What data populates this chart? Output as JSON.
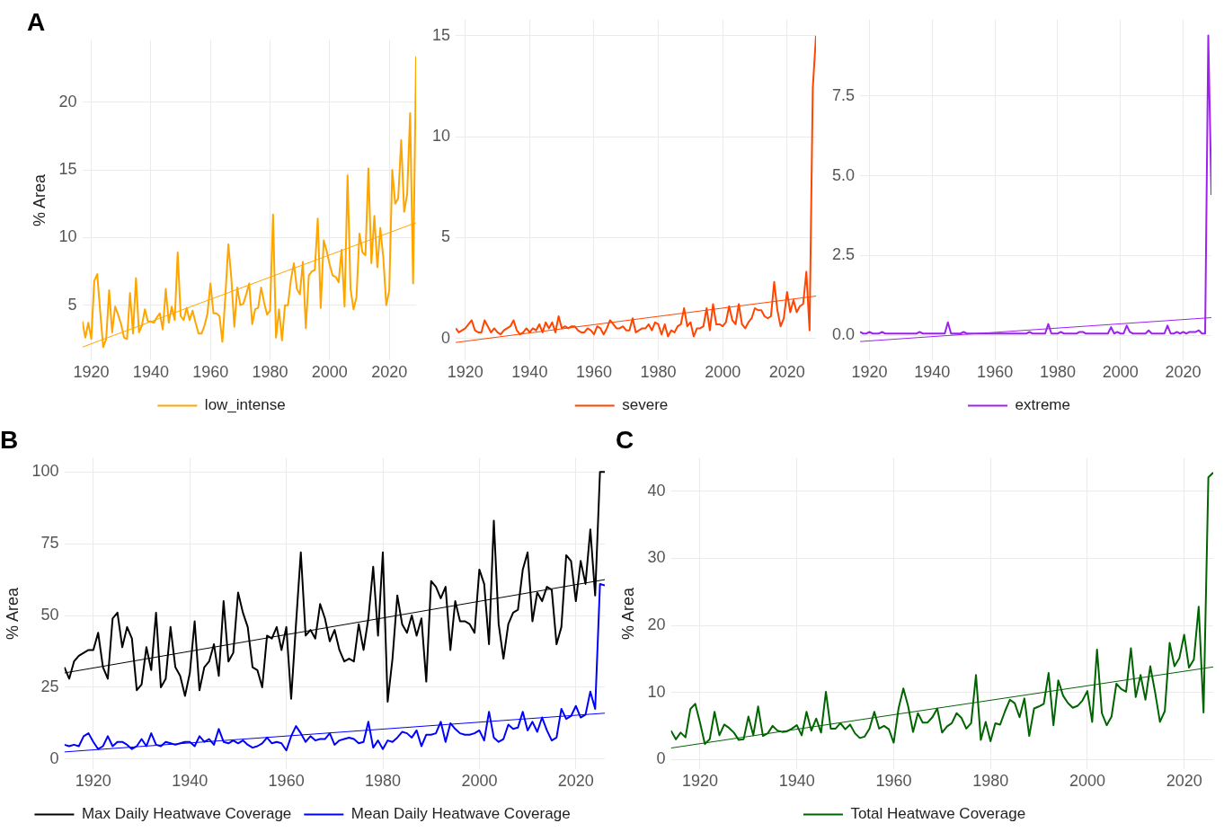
{
  "chart_data": [
    {
      "type": "line",
      "title": "A",
      "ylabel": "% Area",
      "xlim": [
        1917,
        2029
      ],
      "xticks": [
        1920,
        1940,
        1960,
        1980,
        2000,
        2020
      ],
      "ylim": [
        0.9,
        24.6
      ],
      "yticks": [
        5,
        10,
        15,
        20
      ],
      "grid": true,
      "legend": "bottom",
      "x": [
        1917,
        1918,
        1919,
        1920,
        1921,
        1922,
        1923,
        1924,
        1925,
        1926,
        1927,
        1928,
        1929,
        1930,
        1931,
        1932,
        1933,
        1934,
        1935,
        1936,
        1937,
        1938,
        1939,
        1940,
        1941,
        1942,
        1943,
        1944,
        1945,
        1946,
        1947,
        1948,
        1949,
        1950,
        1951,
        1952,
        1953,
        1954,
        1955,
        1956,
        1957,
        1958,
        1959,
        1960,
        1961,
        1962,
        1963,
        1964,
        1965,
        1966,
        1967,
        1968,
        1969,
        1970,
        1971,
        1972,
        1973,
        1974,
        1975,
        1976,
        1977,
        1978,
        1979,
        1980,
        1981,
        1982,
        1983,
        1984,
        1985,
        1986,
        1987,
        1988,
        1989,
        1990,
        1991,
        1992,
        1993,
        1994,
        1995,
        1996,
        1997,
        1998,
        1999,
        2000,
        2001,
        2002,
        2003,
        2004,
        2005,
        2006,
        2007,
        2008,
        2009,
        2010,
        2011,
        2012,
        2013,
        2014,
        2015,
        2016,
        2017,
        2018,
        2019,
        2020,
        2021,
        2022,
        2023,
        2024,
        2025,
        2026,
        2027,
        2028,
        2029
      ],
      "series": [
        {
          "name": "low_intense",
          "color": "#ffa500",
          "values": [
            3.8,
            2.6,
            3.7,
            2.5,
            6.8,
            7.3,
            4.5,
            1.9,
            2.5,
            6.1,
            3.0,
            4.9,
            4.3,
            3.6,
            2.6,
            2.5,
            5.9,
            2.9,
            7.0,
            3.0,
            3.5,
            4.7,
            3.8,
            3.8,
            3.7,
            4.1,
            4.4,
            3.2,
            6.2,
            3.7,
            4.9,
            3.9,
            8.9,
            4.2,
            3.9,
            4.8,
            3.9,
            4.6,
            3.7,
            2.9,
            2.9,
            3.5,
            4.4,
            6.6,
            4.4,
            4.4,
            4.2,
            2.3,
            5.7,
            9.5,
            7.0,
            3.4,
            6.3,
            5.0,
            5.1,
            5.8,
            6.6,
            3.6,
            4.7,
            4.8,
            6.3,
            5.2,
            4.3,
            4.6,
            11.7,
            2.6,
            4.7,
            2.4,
            5.0,
            5.0,
            6.9,
            8.1,
            6.2,
            5.8,
            8.2,
            3.3,
            7.2,
            7.5,
            7.6,
            11.4,
            4.8,
            9.8,
            9.0,
            8.0,
            7.2,
            7.1,
            6.7,
            9.1,
            4.9,
            14.6,
            6.2,
            4.7,
            5.6,
            10.3,
            8.9,
            8.7,
            15.1,
            8.1,
            11.6,
            7.8,
            10.7,
            8.5,
            5.0,
            6.1,
            15.0,
            12.5,
            12.9,
            17.2,
            11.9,
            13.2,
            19.2,
            6.6,
            23.4
          ]
        },
        {
          "color": "#ffa500",
          "x": [
            1917,
            2029
          ],
          "values": [
            1.9,
            11.1
          ]
        }
      ]
    },
    {
      "type": "line",
      "xlim": [
        1917,
        2029
      ],
      "xticks": [
        1920,
        1940,
        1960,
        1980,
        2000,
        2020
      ],
      "ylim": [
        -1.1,
        15.8
      ],
      "yticks": [
        0,
        5,
        10,
        15
      ],
      "grid": true,
      "legend": "bottom",
      "x": [
        1917,
        1918,
        1919,
        1920,
        1921,
        1922,
        1923,
        1924,
        1925,
        1926,
        1927,
        1928,
        1929,
        1930,
        1931,
        1932,
        1933,
        1934,
        1935,
        1936,
        1937,
        1938,
        1939,
        1940,
        1941,
        1942,
        1943,
        1944,
        1945,
        1946,
        1947,
        1948,
        1949,
        1950,
        1951,
        1952,
        1953,
        1954,
        1955,
        1956,
        1957,
        1958,
        1959,
        1960,
        1961,
        1962,
        1963,
        1964,
        1965,
        1966,
        1967,
        1968,
        1969,
        1970,
        1971,
        1972,
        1973,
        1974,
        1975,
        1976,
        1977,
        1978,
        1979,
        1980,
        1981,
        1982,
        1983,
        1984,
        1985,
        1986,
        1987,
        1988,
        1989,
        1990,
        1991,
        1992,
        1993,
        1994,
        1995,
        1996,
        1997,
        1998,
        1999,
        2000,
        2001,
        2002,
        2003,
        2004,
        2005,
        2006,
        2007,
        2008,
        2009,
        2010,
        2011,
        2012,
        2013,
        2014,
        2015,
        2016,
        2017,
        2018,
        2019,
        2020,
        2021,
        2022,
        2023,
        2024,
        2025,
        2026,
        2027,
        2028,
        2029
      ],
      "series": [
        {
          "name": "severe",
          "color": "#ff4500",
          "values": [
            0.5,
            0.3,
            0.4,
            0.5,
            0.7,
            0.9,
            0.4,
            0.3,
            0.3,
            0.9,
            0.6,
            0.3,
            0.5,
            0.3,
            0.2,
            0.4,
            0.5,
            0.6,
            0.9,
            0.4,
            0.2,
            0.3,
            0.5,
            0.3,
            0.5,
            0.4,
            0.7,
            0.3,
            0.8,
            0.5,
            0.8,
            0.3,
            1.1,
            0.5,
            0.6,
            0.5,
            0.6,
            0.6,
            0.4,
            0.3,
            0.3,
            0.5,
            0.4,
            0.2,
            0.6,
            0.5,
            0.2,
            0.5,
            0.9,
            0.7,
            0.5,
            0.5,
            0.6,
            0.4,
            0.4,
            1.0,
            0.3,
            0.4,
            0.5,
            0.5,
            0.7,
            0.4,
            0.8,
            0.7,
            0.2,
            0.7,
            0.1,
            0.4,
            0.3,
            0.6,
            0.7,
            1.5,
            0.6,
            0.8,
            0.1,
            0.5,
            0.5,
            0.6,
            1.5,
            0.4,
            1.7,
            0.7,
            0.7,
            0.6,
            0.8,
            1.6,
            0.9,
            0.7,
            1.7,
            0.7,
            0.5,
            0.8,
            1.0,
            1.5,
            1.4,
            1.4,
            1.1,
            1.0,
            1.1,
            2.8,
            1.4,
            0.6,
            1.0,
            2.3,
            1.3,
            1.9,
            1.3,
            1.6,
            1.7,
            3.3,
            0.4,
            12.4,
            15.0
          ]
        },
        {
          "color": "#ff4500",
          "x": [
            1917,
            2029
          ],
          "values": [
            -0.2,
            2.1
          ]
        }
      ]
    },
    {
      "type": "line",
      "xlim": [
        1917,
        2029
      ],
      "xticks": [
        1920,
        1940,
        1960,
        1980,
        2000,
        2020
      ],
      "ylim": [
        -0.8,
        9.9
      ],
      "yticks": [
        {
          "value": 0,
          "label": "0.0"
        },
        {
          "value": 2.5,
          "label": "2.5"
        },
        {
          "value": 5,
          "label": "5.0"
        },
        {
          "value": 7.5,
          "label": "7.5"
        }
      ],
      "grid": true,
      "legend": "bottom",
      "x": [
        1917,
        1918,
        1919,
        1920,
        1921,
        1922,
        1923,
        1924,
        1925,
        1926,
        1927,
        1928,
        1929,
        1930,
        1931,
        1932,
        1933,
        1934,
        1935,
        1936,
        1937,
        1938,
        1939,
        1940,
        1941,
        1942,
        1943,
        1944,
        1945,
        1946,
        1947,
        1948,
        1949,
        1950,
        1951,
        1952,
        1953,
        1954,
        1955,
        1956,
        1957,
        1958,
        1959,
        1960,
        1961,
        1962,
        1963,
        1964,
        1965,
        1966,
        1967,
        1968,
        1969,
        1970,
        1971,
        1972,
        1973,
        1974,
        1975,
        1976,
        1977,
        1978,
        1979,
        1980,
        1981,
        1982,
        1983,
        1984,
        1985,
        1986,
        1987,
        1988,
        1989,
        1990,
        1991,
        1992,
        1993,
        1994,
        1995,
        1996,
        1997,
        1998,
        1999,
        2000,
        2001,
        2002,
        2003,
        2004,
        2005,
        2006,
        2007,
        2008,
        2009,
        2010,
        2011,
        2012,
        2013,
        2014,
        2015,
        2016,
        2017,
        2018,
        2019,
        2020,
        2021,
        2022,
        2023,
        2024,
        2025,
        2026,
        2027,
        2028,
        2029
      ],
      "series": [
        {
          "name": "extreme",
          "color": "#a020f0",
          "values": [
            0.1,
            0.05,
            0.05,
            0.1,
            0.05,
            0.05,
            0.05,
            0.1,
            0.05,
            0.05,
            0.05,
            0.05,
            0.05,
            0.05,
            0.05,
            0.05,
            0.05,
            0.05,
            0.05,
            0.1,
            0.05,
            0.05,
            0.05,
            0.05,
            0.05,
            0.05,
            0.05,
            0.05,
            0.4,
            0.05,
            0.05,
            0.05,
            0.05,
            0.1,
            0.05,
            0.05,
            0.05,
            0.05,
            0.05,
            0.05,
            0.05,
            0.05,
            0.05,
            0.05,
            0.05,
            0.05,
            0.05,
            0.05,
            0.05,
            0.05,
            0.05,
            0.05,
            0.05,
            0.05,
            0.1,
            0.05,
            0.05,
            0.05,
            0.05,
            0.05,
            0.35,
            0.05,
            0.05,
            0.05,
            0.1,
            0.05,
            0.05,
            0.05,
            0.05,
            0.05,
            0.1,
            0.1,
            0.05,
            0.05,
            0.05,
            0.05,
            0.05,
            0.05,
            0.05,
            0.05,
            0.25,
            0.05,
            0.1,
            0.05,
            0.05,
            0.3,
            0.1,
            0.05,
            0.05,
            0.05,
            0.05,
            0.05,
            0.15,
            0.05,
            0.05,
            0.05,
            0.05,
            0.05,
            0.3,
            0.05,
            0.05,
            0.1,
            0.05,
            0.1,
            0.05,
            0.1,
            0.1,
            0.1,
            0.15,
            0.05,
            0.05,
            9.4,
            4.4
          ]
        },
        {
          "color": "#a020f0",
          "x": [
            1917,
            2029
          ],
          "values": [
            -0.2,
            0.55
          ]
        }
      ]
    },
    {
      "type": "line",
      "title": "B",
      "ylabel": "% Area",
      "xlim": [
        1914,
        2026
      ],
      "xticks": [
        1920,
        1940,
        1960,
        1980,
        2000,
        2020
      ],
      "ylim": [
        -3.6,
        104.9
      ],
      "yticks": [
        0,
        25,
        50,
        75,
        100
      ],
      "grid": true,
      "legend": "bottom",
      "x": [
        1914,
        1915,
        1916,
        1917,
        1918,
        1919,
        1920,
        1921,
        1922,
        1923,
        1924,
        1925,
        1926,
        1927,
        1928,
        1929,
        1930,
        1931,
        1932,
        1933,
        1934,
        1935,
        1936,
        1937,
        1938,
        1939,
        1940,
        1941,
        1942,
        1943,
        1944,
        1945,
        1946,
        1947,
        1948,
        1949,
        1950,
        1951,
        1952,
        1953,
        1954,
        1955,
        1956,
        1957,
        1958,
        1959,
        1960,
        1961,
        1962,
        1963,
        1964,
        1965,
        1966,
        1967,
        1968,
        1969,
        1970,
        1971,
        1972,
        1973,
        1974,
        1975,
        1976,
        1977,
        1978,
        1979,
        1980,
        1981,
        1982,
        1983,
        1984,
        1985,
        1986,
        1987,
        1988,
        1989,
        1990,
        1991,
        1992,
        1993,
        1994,
        1995,
        1996,
        1997,
        1998,
        1999,
        2000,
        2001,
        2002,
        2003,
        2004,
        2005,
        2006,
        2007,
        2008,
        2009,
        2010,
        2011,
        2012,
        2013,
        2014,
        2015,
        2016,
        2017,
        2018,
        2019,
        2020,
        2021,
        2022,
        2023,
        2024,
        2025,
        2026
      ],
      "series": [
        {
          "name": "Max Daily Heatwave Coverage",
          "color": "#000000",
          "values": [
            32,
            28,
            34,
            36,
            37,
            38,
            38,
            44,
            32,
            28,
            49,
            51,
            39,
            46,
            42,
            24,
            26,
            39,
            31,
            51,
            25,
            28,
            46,
            32,
            29,
            22,
            30,
            48,
            24,
            32,
            34,
            40,
            29,
            55,
            34,
            37,
            58,
            51,
            46,
            32,
            31,
            25,
            43,
            42,
            46,
            38,
            46,
            21,
            47,
            72,
            43,
            45,
            42,
            54,
            49,
            41,
            45,
            38,
            34,
            35,
            34,
            47,
            38,
            49,
            67,
            43,
            72,
            20,
            35,
            57,
            47,
            44,
            50,
            43,
            49,
            27,
            62,
            60,
            56,
            60,
            38,
            55,
            48,
            48,
            47,
            44,
            66,
            61,
            40,
            83,
            47,
            35,
            47,
            51,
            52,
            66,
            72,
            48,
            58,
            55,
            60,
            59,
            40,
            46,
            71,
            69,
            55,
            69,
            61,
            80,
            57,
            100,
            100
          ]
        },
        {
          "name": "Mean Daily Heatwave Coverage",
          "color": "#0000ff",
          "values": [
            5,
            4.5,
            5,
            4.5,
            8,
            9,
            6,
            3.5,
            4.5,
            8,
            4.5,
            6,
            6,
            5,
            3.5,
            4.5,
            7,
            4.5,
            9,
            5,
            4.5,
            6,
            5.5,
            5,
            5.5,
            6,
            6,
            4.5,
            8,
            6,
            7,
            5,
            10.5,
            6,
            5.5,
            6.5,
            5.5,
            6.5,
            5,
            4,
            4.5,
            5.5,
            7.5,
            5.5,
            6,
            5.5,
            3,
            8,
            11.5,
            9,
            6,
            8,
            6.5,
            7,
            7,
            9,
            5,
            6.5,
            7,
            7.5,
            7,
            5.5,
            6,
            13,
            4,
            6.5,
            3.5,
            6.5,
            6,
            7.5,
            9.5,
            9,
            7.5,
            10,
            4.5,
            8.5,
            8.5,
            9,
            13,
            6,
            12.5,
            10.5,
            9,
            8.5,
            8.5,
            9,
            10,
            6.5,
            16.5,
            7.5,
            6,
            7,
            12,
            10.5,
            11,
            16.5,
            10,
            13,
            9.5,
            14.5,
            10,
            6.5,
            7.5,
            17.5,
            14,
            15,
            18.5,
            14.5,
            15.5,
            23.5,
            17.5,
            61,
            60.5
          ]
        },
        {
          "color": "#000000",
          "x": [
            1914,
            2026
          ],
          "values": [
            30,
            62.5
          ]
        },
        {
          "color": "#0000ff",
          "x": [
            1914,
            2026
          ],
          "values": [
            2.5,
            16
          ]
        }
      ]
    },
    {
      "type": "line",
      "title": "C",
      "ylabel": "% Area",
      "xlim": [
        1914,
        2026
      ],
      "xticks": [
        1920,
        1940,
        1960,
        1980,
        2000,
        2020
      ],
      "ylim": [
        -1.5,
        45
      ],
      "yticks": [
        0,
        10,
        20,
        30,
        40
      ],
      "grid": true,
      "legend": "bottom",
      "x": [
        1914,
        1915,
        1916,
        1917,
        1918,
        1919,
        1920,
        1921,
        1922,
        1923,
        1924,
        1925,
        1926,
        1927,
        1928,
        1929,
        1930,
        1931,
        1932,
        1933,
        1934,
        1935,
        1936,
        1937,
        1938,
        1939,
        1940,
        1941,
        1942,
        1943,
        1944,
        1945,
        1946,
        1947,
        1948,
        1949,
        1950,
        1951,
        1952,
        1953,
        1954,
        1955,
        1956,
        1957,
        1958,
        1959,
        1960,
        1961,
        1962,
        1963,
        1964,
        1965,
        1966,
        1967,
        1968,
        1969,
        1970,
        1971,
        1972,
        1973,
        1974,
        1975,
        1976,
        1977,
        1978,
        1979,
        1980,
        1981,
        1982,
        1983,
        1984,
        1985,
        1986,
        1987,
        1988,
        1989,
        1990,
        1991,
        1992,
        1993,
        1994,
        1995,
        1996,
        1997,
        1998,
        1999,
        2000,
        2001,
        2002,
        2003,
        2004,
        2005,
        2006,
        2007,
        2008,
        2009,
        2010,
        2011,
        2012,
        2013,
        2014,
        2015,
        2016,
        2017,
        2018,
        2019,
        2020,
        2021,
        2022,
        2023,
        2024,
        2025,
        2026
      ],
      "series": [
        {
          "name": "Total Heatwave Coverage",
          "color": "#006400",
          "values": [
            4.3,
            3.0,
            4.0,
            3.3,
            7.5,
            8.3,
            5.5,
            2.3,
            3.0,
            7.1,
            3.6,
            5.2,
            4.7,
            4.0,
            2.9,
            3.0,
            6.4,
            3.6,
            7.9,
            3.5,
            3.9,
            5.0,
            4.3,
            4.1,
            4.2,
            4.6,
            5.1,
            3.6,
            7.1,
            4.3,
            6.1,
            4.0,
            10.1,
            4.6,
            4.6,
            5.4,
            4.5,
            5.2,
            3.9,
            3.2,
            3.4,
            4.6,
            7.1,
            4.6,
            5.0,
            4.5,
            2.5,
            7.6,
            10.6,
            7.9,
            4.1,
            6.9,
            5.5,
            5.5,
            6.3,
            7.6,
            4.0,
            4.9,
            5.4,
            6.9,
            6.2,
            4.6,
            5.4,
            12.6,
            2.9,
            5.6,
            2.7,
            5.4,
            5.2,
            7.2,
            8.9,
            8.4,
            6.3,
            9.1,
            3.5,
            7.6,
            7.9,
            8.3,
            12.9,
            5.1,
            11.8,
            9.5,
            8.4,
            7.7,
            8.0,
            8.8,
            10.2,
            5.6,
            16.4,
            6.9,
            5.1,
            6.4,
            11.3,
            10.5,
            10.1,
            16.6,
            9.3,
            12.6,
            8.9,
            13.9,
            10.0,
            5.6,
            7.2,
            17.4,
            13.9,
            15.1,
            18.6,
            13.7,
            14.9,
            22.8,
            7.0,
            42.1,
            42.8
          ]
        },
        {
          "color": "#006400",
          "x": [
            1914,
            2026
          ],
          "values": [
            1.7,
            13.8
          ]
        }
      ]
    }
  ]
}
